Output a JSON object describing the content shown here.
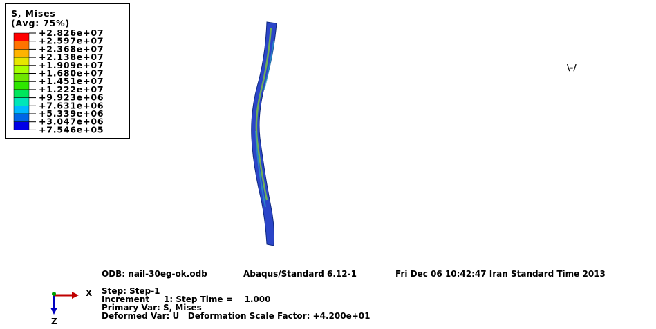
{
  "legend": {
    "title": "S, Mises",
    "subtitle": "(Avg: 75%)",
    "labels": [
      "+2.826e+07",
      "+2.597e+07",
      "+2.368e+07",
      "+2.138e+07",
      "+1.909e+07",
      "+1.680e+07",
      "+1.451e+07",
      "+1.222e+07",
      "+9.923e+06",
      "+7.631e+06",
      "+5.339e+06",
      "+3.047e+06",
      "+7.546e+05"
    ],
    "colors": [
      "#ff0000",
      "#ff7300",
      "#ffb300",
      "#e6e600",
      "#a6ff00",
      "#6ee600",
      "#2ee600",
      "#00e65c",
      "#00e6b8",
      "#00b8ff",
      "#0066e6",
      "#0000e6"
    ]
  },
  "info": {
    "odb": "ODB: nail-30eg-ok.odb",
    "solver": "Abaqus/Standard 6.12-1",
    "date": "Fri Dec 06 10:42:47 Iran Standard Time 2013",
    "lines": [
      "Step: Step-1",
      "Increment     1: Step Time =    1.000",
      "Primary Var: S, Mises",
      "Deformed Var: U   Deformation Scale Factor: +4.200e+01"
    ]
  },
  "triad": {
    "x": "X",
    "z": "Z"
  }
}
